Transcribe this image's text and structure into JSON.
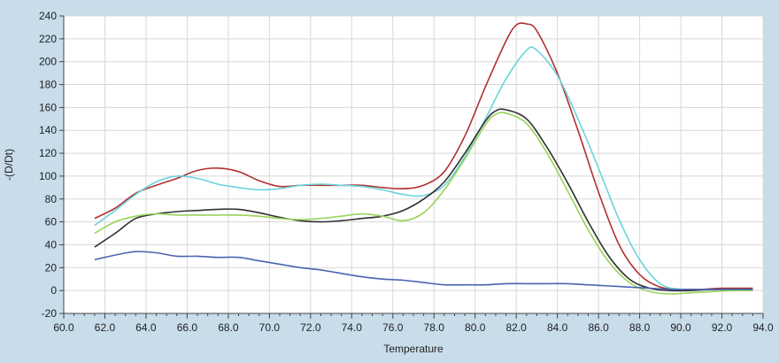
{
  "chart_data": {
    "type": "line",
    "title": "",
    "xlabel": "Temperature",
    "ylabel": "-(D/Dt)",
    "xlim": [
      60,
      94
    ],
    "ylim": [
      -20,
      240
    ],
    "grid": true,
    "x_ticks": [
      "60.0",
      "62.0",
      "64.0",
      "66.0",
      "68.0",
      "70.0",
      "72.0",
      "74.0",
      "76.0",
      "78.0",
      "80.0",
      "82.0",
      "84.0",
      "86.0",
      "88.0",
      "90.0",
      "92.0",
      "94.0"
    ],
    "y_ticks": [
      "-20",
      "0",
      "20",
      "40",
      "60",
      "80",
      "100",
      "120",
      "140",
      "160",
      "180",
      "200",
      "220",
      "240"
    ],
    "series": [
      {
        "color": "#b03030",
        "points": [
          [
            61.5,
            63
          ],
          [
            62.5,
            72
          ],
          [
            63.5,
            85
          ],
          [
            64.5,
            92
          ],
          [
            65.5,
            98
          ],
          [
            66.5,
            105
          ],
          [
            67.5,
            107
          ],
          [
            68.5,
            104
          ],
          [
            69.5,
            96
          ],
          [
            70.5,
            91
          ],
          [
            71.5,
            92
          ],
          [
            72.5,
            92
          ],
          [
            73.5,
            92
          ],
          [
            74.5,
            92
          ],
          [
            75.5,
            90
          ],
          [
            76.5,
            89
          ],
          [
            77.5,
            92
          ],
          [
            78.5,
            104
          ],
          [
            79.5,
            135
          ],
          [
            80.5,
            178
          ],
          [
            81.5,
            218
          ],
          [
            82.0,
            232
          ],
          [
            82.5,
            233
          ],
          [
            83.0,
            227
          ],
          [
            84.0,
            190
          ],
          [
            85.0,
            140
          ],
          [
            86.0,
            86
          ],
          [
            87.0,
            40
          ],
          [
            88.0,
            14
          ],
          [
            89.0,
            3
          ],
          [
            90.0,
            1
          ],
          [
            91.0,
            1
          ],
          [
            92.0,
            2
          ],
          [
            93.5,
            2
          ]
        ]
      },
      {
        "color": "#6ad4dc",
        "points": [
          [
            61.5,
            57
          ],
          [
            62.5,
            70
          ],
          [
            63.5,
            84
          ],
          [
            64.5,
            95
          ],
          [
            65.5,
            100
          ],
          [
            66.5,
            98
          ],
          [
            67.5,
            93
          ],
          [
            68.5,
            90
          ],
          [
            69.5,
            88
          ],
          [
            70.5,
            89
          ],
          [
            71.5,
            92
          ],
          [
            72.5,
            93
          ],
          [
            73.5,
            92
          ],
          [
            74.5,
            91
          ],
          [
            75.5,
            88
          ],
          [
            76.5,
            84
          ],
          [
            77.5,
            83
          ],
          [
            78.5,
            92
          ],
          [
            79.5,
            117
          ],
          [
            80.5,
            150
          ],
          [
            81.5,
            185
          ],
          [
            82.5,
            210
          ],
          [
            83.0,
            210
          ],
          [
            84.0,
            188
          ],
          [
            85.0,
            150
          ],
          [
            86.0,
            107
          ],
          [
            87.0,
            62
          ],
          [
            88.0,
            27
          ],
          [
            89.0,
            6
          ],
          [
            90.0,
            1
          ],
          [
            91.0,
            1
          ],
          [
            92.0,
            1
          ],
          [
            93.5,
            1
          ]
        ]
      },
      {
        "color": "#303030",
        "points": [
          [
            61.5,
            38
          ],
          [
            62.5,
            50
          ],
          [
            63.5,
            63
          ],
          [
            64.5,
            67
          ],
          [
            65.5,
            69
          ],
          [
            66.5,
            70
          ],
          [
            67.5,
            71
          ],
          [
            68.5,
            71
          ],
          [
            69.5,
            68
          ],
          [
            70.5,
            64
          ],
          [
            71.5,
            61
          ],
          [
            72.5,
            60
          ],
          [
            73.5,
            61
          ],
          [
            74.5,
            63
          ],
          [
            75.5,
            65
          ],
          [
            76.5,
            70
          ],
          [
            77.5,
            80
          ],
          [
            78.5,
            95
          ],
          [
            79.5,
            120
          ],
          [
            80.5,
            148
          ],
          [
            81.0,
            157
          ],
          [
            81.5,
            158
          ],
          [
            82.5,
            150
          ],
          [
            83.5,
            125
          ],
          [
            84.5,
            94
          ],
          [
            85.5,
            60
          ],
          [
            86.5,
            30
          ],
          [
            87.5,
            10
          ],
          [
            88.5,
            2
          ],
          [
            89.5,
            0
          ],
          [
            90.5,
            0
          ],
          [
            91.5,
            1
          ],
          [
            92.5,
            1
          ],
          [
            93.5,
            1
          ]
        ]
      },
      {
        "color": "#9ad45a",
        "points": [
          [
            61.5,
            50
          ],
          [
            62.5,
            60
          ],
          [
            63.5,
            65
          ],
          [
            64.5,
            67
          ],
          [
            65.5,
            66
          ],
          [
            66.5,
            66
          ],
          [
            67.5,
            66
          ],
          [
            68.5,
            66
          ],
          [
            69.5,
            65
          ],
          [
            70.5,
            63
          ],
          [
            71.5,
            62
          ],
          [
            72.5,
            63
          ],
          [
            73.5,
            65
          ],
          [
            74.5,
            67
          ],
          [
            75.5,
            65
          ],
          [
            76.5,
            61
          ],
          [
            77.5,
            68
          ],
          [
            78.5,
            88
          ],
          [
            79.5,
            115
          ],
          [
            80.5,
            145
          ],
          [
            81.0,
            154
          ],
          [
            81.5,
            155
          ],
          [
            82.5,
            146
          ],
          [
            83.5,
            120
          ],
          [
            84.5,
            87
          ],
          [
            85.5,
            53
          ],
          [
            86.5,
            25
          ],
          [
            87.5,
            7
          ],
          [
            88.5,
            -1
          ],
          [
            89.5,
            -3
          ],
          [
            90.5,
            -2
          ],
          [
            91.5,
            -1
          ],
          [
            92.5,
            0
          ],
          [
            93.5,
            0
          ]
        ]
      },
      {
        "color": "#4a64b0",
        "points": [
          [
            61.5,
            27
          ],
          [
            62.5,
            31
          ],
          [
            63.5,
            34
          ],
          [
            64.5,
            33
          ],
          [
            65.5,
            30
          ],
          [
            66.5,
            30
          ],
          [
            67.5,
            29
          ],
          [
            68.5,
            29
          ],
          [
            69.5,
            26
          ],
          [
            70.5,
            23
          ],
          [
            71.5,
            20
          ],
          [
            72.5,
            18
          ],
          [
            73.5,
            15
          ],
          [
            74.5,
            12
          ],
          [
            75.5,
            10
          ],
          [
            76.5,
            9
          ],
          [
            77.5,
            7
          ],
          [
            78.5,
            5
          ],
          [
            79.5,
            5
          ],
          [
            80.5,
            5
          ],
          [
            81.5,
            6
          ],
          [
            82.5,
            6
          ],
          [
            83.5,
            6
          ],
          [
            84.5,
            6
          ],
          [
            85.5,
            5
          ],
          [
            86.5,
            4
          ],
          [
            87.5,
            3
          ],
          [
            88.5,
            2
          ],
          [
            89.5,
            1
          ],
          [
            90.5,
            1
          ],
          [
            91.5,
            1
          ],
          [
            92.5,
            1
          ],
          [
            93.5,
            1
          ]
        ]
      }
    ]
  }
}
